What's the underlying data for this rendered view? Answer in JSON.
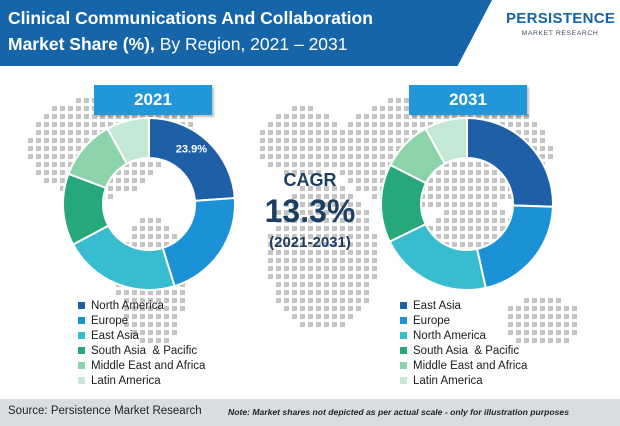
{
  "header": {
    "title_bold_1": "Clinical Communications And Collaboration",
    "title_bold_2": "Market Share (%),",
    "title_rest_2": " By Region, 2021 – 2031"
  },
  "logo": {
    "name": "PERSISTENCE",
    "subtitle": "MARKET RESEARCH"
  },
  "cagr": {
    "label": "CAGR",
    "value": "13.3%",
    "period": "(2021-2031)"
  },
  "footer": {
    "source": "Source: Persistence Market Research",
    "note": "Note: Market shares not depicted as per actual scale - only for illustration purposes"
  },
  "colors": {
    "title_band": "#1565a8",
    "banner": "#2196d8",
    "map_dots": "#c4c4c4",
    "footer_bg": "#d9dde2"
  },
  "chart_data": [
    {
      "type": "pie",
      "title": "2021",
      "donut": true,
      "categories": [
        "North America",
        "Europe",
        "East Asia",
        "South Asia  & Pacific",
        "Middle East and Africa",
        "Latin America"
      ],
      "values": [
        23.9,
        21.3,
        22.0,
        13.5,
        11.3,
        8.0
      ],
      "colors": [
        "#1f5fa6",
        "#1b91d6",
        "#37bcd0",
        "#27a87b",
        "#8cd3a9",
        "#c3e8d6"
      ],
      "data_labels": [
        "23.9%",
        "",
        "",
        "",
        "",
        ""
      ],
      "legend_placement": "bottom"
    },
    {
      "type": "pie",
      "title": "2031",
      "donut": true,
      "categories": [
        "East Asia",
        "Europe",
        "North America",
        "South Asia  & Pacific",
        "Middle East and Africa",
        "Latin America"
      ],
      "values": [
        25.5,
        21.0,
        21.3,
        14.7,
        9.5,
        8.0
      ],
      "colors": [
        "#1f5fa6",
        "#1b91d6",
        "#37bcd0",
        "#27a87b",
        "#8cd3a9",
        "#c3e8d6"
      ],
      "data_labels": [
        "",
        "",
        "",
        "",
        "",
        ""
      ],
      "legend_placement": "bottom"
    }
  ]
}
